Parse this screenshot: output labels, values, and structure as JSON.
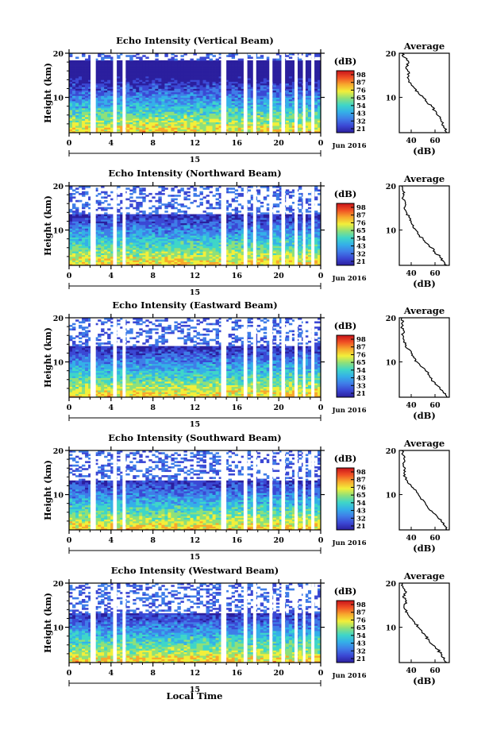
{
  "figure": {
    "xlabel": "Local Time",
    "date_label": "15",
    "month_label": "Jun 2016"
  },
  "chart_data": [
    {
      "type": "heatmap",
      "title": "Echo Intensity (Vertical Beam)",
      "ylabel": "Height (km)",
      "xlim": [
        0,
        24
      ],
      "ylim": [
        2,
        20
      ],
      "xticks": [
        "0",
        "4",
        "8",
        "12",
        "16",
        "20",
        "0"
      ],
      "yticks": [
        "10",
        "20"
      ],
      "echo_top_km": 18.5,
      "colorbar": {
        "unit": "(dB)",
        "ticks": [
          "21",
          "32",
          "43",
          "54",
          "65",
          "76",
          "87",
          "98"
        ]
      },
      "average": {
        "title": "Average",
        "xlabel": "(dB)",
        "xticks": [
          "40",
          "60"
        ],
        "yticks": [
          "10",
          "20"
        ],
        "xlim": [
          30,
          72
        ],
        "profile": [
          [
            2,
            70
          ],
          [
            3,
            68
          ],
          [
            4,
            66
          ],
          [
            5,
            65
          ],
          [
            6,
            62
          ],
          [
            7,
            60
          ],
          [
            8,
            57
          ],
          [
            9,
            53
          ],
          [
            10,
            50
          ],
          [
            11,
            46
          ],
          [
            12,
            43
          ],
          [
            13,
            40
          ],
          [
            14,
            38
          ],
          [
            15,
            38
          ],
          [
            16,
            37
          ],
          [
            17,
            36
          ],
          [
            18,
            38
          ],
          [
            19,
            35
          ],
          [
            20,
            32
          ]
        ]
      }
    },
    {
      "type": "heatmap",
      "title": "Echo Intensity (Northward Beam)",
      "ylabel": "Height (km)",
      "xlim": [
        0,
        24
      ],
      "ylim": [
        2,
        20
      ],
      "xticks": [
        "0",
        "4",
        "8",
        "12",
        "16",
        "20",
        "0"
      ],
      "yticks": [
        "10",
        "20"
      ],
      "echo_top_km": 13.5,
      "colorbar": {
        "unit": "(dB)",
        "ticks": [
          "21",
          "32",
          "43",
          "54",
          "65",
          "76",
          "87",
          "98"
        ]
      },
      "average": {
        "title": "Average",
        "xlabel": "(dB)",
        "xticks": [
          "40",
          "60"
        ],
        "yticks": [
          "10",
          "20"
        ],
        "xlim": [
          30,
          72
        ],
        "profile": [
          [
            2,
            70
          ],
          [
            3,
            67
          ],
          [
            4,
            64
          ],
          [
            5,
            60
          ],
          [
            6,
            57
          ],
          [
            7,
            53
          ],
          [
            8,
            50
          ],
          [
            9,
            46
          ],
          [
            10,
            44
          ],
          [
            11,
            42
          ],
          [
            12,
            40
          ],
          [
            13,
            38
          ],
          [
            14,
            36
          ],
          [
            15,
            34
          ],
          [
            16,
            35
          ],
          [
            17,
            33
          ],
          [
            18,
            34
          ],
          [
            19,
            33
          ],
          [
            20,
            32
          ]
        ]
      }
    },
    {
      "type": "heatmap",
      "title": "Echo Intensity (Eastward Beam)",
      "ylabel": "Height (km)",
      "xlim": [
        0,
        24
      ],
      "ylim": [
        2,
        20
      ],
      "xticks": [
        "0",
        "4",
        "8",
        "12",
        "16",
        "20",
        "0"
      ],
      "yticks": [
        "10",
        "20"
      ],
      "echo_top_km": 13.5,
      "colorbar": {
        "unit": "(dB)",
        "ticks": [
          "21",
          "33",
          "43",
          "54",
          "65",
          "76",
          "87",
          "98"
        ]
      },
      "average": {
        "title": "Average",
        "xlabel": "(dB)",
        "xticks": [
          "40",
          "60"
        ],
        "yticks": [
          "10",
          "20"
        ],
        "xlim": [
          30,
          72
        ],
        "profile": [
          [
            2,
            70
          ],
          [
            3,
            67
          ],
          [
            4,
            64
          ],
          [
            5,
            60
          ],
          [
            6,
            57
          ],
          [
            7,
            55
          ],
          [
            8,
            52
          ],
          [
            9,
            48
          ],
          [
            10,
            45
          ],
          [
            11,
            42
          ],
          [
            12,
            40
          ],
          [
            13,
            37
          ],
          [
            14,
            35
          ],
          [
            15,
            34
          ],
          [
            16,
            33
          ],
          [
            17,
            34
          ],
          [
            18,
            32
          ],
          [
            19,
            33
          ],
          [
            20,
            32
          ]
        ]
      }
    },
    {
      "type": "heatmap",
      "title": "Echo Intensity (Southward Beam)",
      "ylabel": "Height (km)",
      "xlim": [
        0,
        24
      ],
      "ylim": [
        2,
        20
      ],
      "xticks": [
        "0",
        "4",
        "8",
        "12",
        "16",
        "20",
        "0"
      ],
      "yticks": [
        "10",
        "20"
      ],
      "echo_top_km": 13.0,
      "colorbar": {
        "unit": "(dB)",
        "ticks": [
          "21",
          "32",
          "43",
          "54",
          "65",
          "76",
          "87",
          "98"
        ]
      },
      "average": {
        "title": "Average",
        "xlabel": "(dB)",
        "xticks": [
          "40",
          "60"
        ],
        "yticks": [
          "10",
          "20"
        ],
        "xlim": [
          30,
          72
        ],
        "profile": [
          [
            2,
            70
          ],
          [
            3,
            68
          ],
          [
            4,
            65
          ],
          [
            5,
            62
          ],
          [
            6,
            58
          ],
          [
            7,
            54
          ],
          [
            8,
            52
          ],
          [
            9,
            48
          ],
          [
            10,
            46
          ],
          [
            11,
            44
          ],
          [
            12,
            40
          ],
          [
            13,
            37
          ],
          [
            14,
            35
          ],
          [
            15,
            34
          ],
          [
            16,
            35
          ],
          [
            17,
            33
          ],
          [
            18,
            34
          ],
          [
            19,
            33
          ],
          [
            20,
            32
          ]
        ]
      }
    },
    {
      "type": "heatmap",
      "title": "Echo Intensity (Westward Beam)",
      "ylabel": "Height (km)",
      "xlim": [
        0,
        24
      ],
      "ylim": [
        2,
        20
      ],
      "xticks": [
        "0",
        "4",
        "8",
        "12",
        "16",
        "20",
        "0"
      ],
      "yticks": [
        "10",
        "20"
      ],
      "echo_top_km": 13.0,
      "colorbar": {
        "unit": "(dB)",
        "ticks": [
          "21",
          "32",
          "43",
          "54",
          "65",
          "76",
          "87",
          "98"
        ]
      },
      "average": {
        "title": "Average",
        "xlabel": "(dB)",
        "xticks": [
          "40",
          "60"
        ],
        "yticks": [
          "10",
          "20"
        ],
        "xlim": [
          30,
          72
        ],
        "profile": [
          [
            2,
            70
          ],
          [
            3,
            68
          ],
          [
            4,
            65
          ],
          [
            5,
            62
          ],
          [
            6,
            58
          ],
          [
            7,
            55
          ],
          [
            8,
            52
          ],
          [
            9,
            49
          ],
          [
            10,
            46
          ],
          [
            11,
            43
          ],
          [
            12,
            40
          ],
          [
            13,
            37
          ],
          [
            14,
            35
          ],
          [
            15,
            34
          ],
          [
            16,
            36
          ],
          [
            17,
            33
          ],
          [
            18,
            36
          ],
          [
            19,
            33
          ],
          [
            20,
            32
          ]
        ]
      }
    }
  ],
  "colorscale": [
    "#2b1f9e",
    "#3b48d4",
    "#3f7de8",
    "#34b0e8",
    "#3fd6c8",
    "#8ee07a",
    "#f2ef3a",
    "#f7a82d",
    "#f05024",
    "#c8141a"
  ],
  "data_gaps_hours": [
    [
      2.05,
      2.55
    ],
    [
      4.2,
      4.55
    ],
    [
      5.1,
      5.4
    ],
    [
      14.5,
      15.0
    ],
    [
      16.65,
      17.0
    ],
    [
      17.55,
      17.85
    ],
    [
      19.1,
      19.4
    ],
    [
      20.25,
      20.6
    ],
    [
      21.5,
      21.8
    ],
    [
      22.3,
      22.55
    ],
    [
      23.1,
      23.4
    ]
  ]
}
